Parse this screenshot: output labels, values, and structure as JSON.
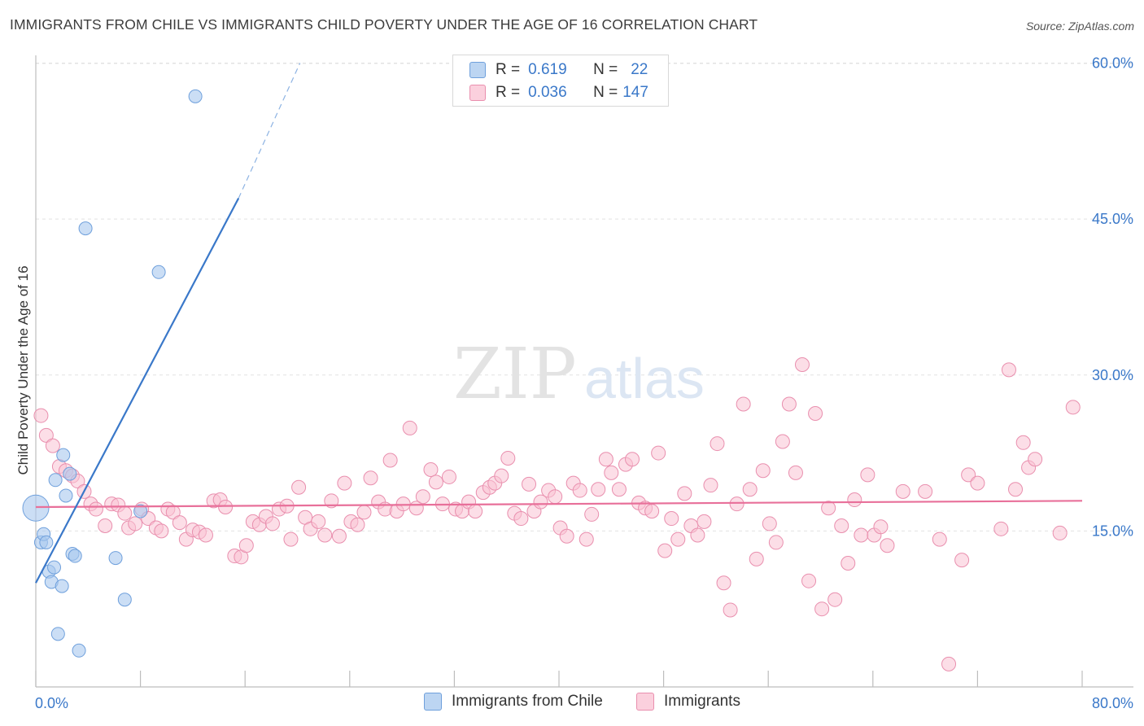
{
  "title": "IMMIGRANTS FROM CHILE VS IMMIGRANTS CHILD POVERTY UNDER THE AGE OF 16 CORRELATION CHART",
  "source": "Source: ZipAtlas.com",
  "watermark": {
    "zip": "ZIP",
    "atlas": "atlas"
  },
  "legend_stats": [
    {
      "r_label": "R =",
      "r_value": "0.619",
      "n_label": "N =",
      "n_value": "22",
      "color": "#a9c8ef",
      "border": "#6fa0dc"
    },
    {
      "r_label": "R =",
      "r_value": "0.036",
      "n_label": "N =",
      "n_value": "147",
      "color": "#f9c3d3",
      "border": "#e98fae"
    }
  ],
  "chart_data": {
    "type": "scatter",
    "title": "IMMIGRANTS FROM CHILE VS IMMIGRANTS CHILD POVERTY UNDER THE AGE OF 16 CORRELATION CHART",
    "xlabel": "",
    "ylabel": "Child Poverty Under the Age of 16",
    "xlim": [
      0,
      80
    ],
    "ylim": [
      0,
      63
    ],
    "x_tick_labels": [
      "0.0%",
      "80.0%"
    ],
    "y_ticks": [
      15,
      30,
      45,
      60
    ],
    "y_tick_labels": [
      "15.0%",
      "30.0%",
      "45.0%",
      "60.0%"
    ],
    "grid": true,
    "legend_position": "bottom-center",
    "series": [
      {
        "name": "Immigrants from Chile",
        "color": "#a9c8ef",
        "stroke": "#6fa0dc",
        "line_color": "#3a78c9",
        "trend": {
          "x0": 0,
          "y0": 10,
          "x1": 15.5,
          "y1": 47,
          "dash_x1": 20.2,
          "dash_y1": 60
        },
        "points": [
          [
            0,
            17.2,
            16
          ],
          [
            0.4,
            13.9,
            8
          ],
          [
            0.6,
            14.7,
            8
          ],
          [
            0.8,
            13.9,
            8
          ],
          [
            1.0,
            11.1,
            8
          ],
          [
            1.2,
            10.1,
            8
          ],
          [
            1.4,
            11.5,
            8
          ],
          [
            1.5,
            19.9,
            8
          ],
          [
            1.7,
            5.1,
            8
          ],
          [
            2.0,
            9.7,
            8
          ],
          [
            2.1,
            22.3,
            8
          ],
          [
            2.3,
            18.4,
            8
          ],
          [
            2.6,
            20.5,
            8
          ],
          [
            2.8,
            12.8,
            8
          ],
          [
            3.0,
            12.6,
            8
          ],
          [
            3.3,
            3.5,
            8
          ],
          [
            3.8,
            44.1,
            8
          ],
          [
            6.1,
            12.4,
            8
          ],
          [
            6.8,
            8.4,
            8
          ],
          [
            8.0,
            16.9,
            8
          ],
          [
            9.4,
            39.9,
            8
          ],
          [
            12.2,
            56.8,
            8
          ]
        ]
      },
      {
        "name": "Immigrants",
        "color": "#f9c3d3",
        "stroke": "#e98fae",
        "line_color": "#e8709a",
        "trend": {
          "x0": 0,
          "y0": 17.3,
          "x1": 80,
          "y1": 17.9
        },
        "points": [
          [
            0.4,
            26.1
          ],
          [
            0.8,
            24.2
          ],
          [
            1.3,
            23.2
          ],
          [
            1.8,
            21.2
          ],
          [
            2.3,
            20.8
          ],
          [
            2.8,
            20.3
          ],
          [
            3.2,
            19.8
          ],
          [
            3.7,
            18.8
          ],
          [
            4.2,
            17.6
          ],
          [
            4.6,
            17.1
          ],
          [
            5.3,
            15.5
          ],
          [
            5.8,
            17.6
          ],
          [
            6.3,
            17.5
          ],
          [
            6.8,
            16.7
          ],
          [
            7.1,
            15.3
          ],
          [
            7.6,
            15.7
          ],
          [
            8.1,
            17.1
          ],
          [
            8.6,
            16.2
          ],
          [
            9.2,
            15.3
          ],
          [
            9.6,
            15.0
          ],
          [
            10.1,
            17.1
          ],
          [
            10.5,
            16.8
          ],
          [
            11.0,
            15.8
          ],
          [
            11.5,
            14.2
          ],
          [
            12.0,
            15.1
          ],
          [
            12.5,
            14.9
          ],
          [
            13.0,
            14.6
          ],
          [
            13.6,
            17.9
          ],
          [
            14.1,
            18.0
          ],
          [
            14.5,
            17.3
          ],
          [
            15.2,
            12.6
          ],
          [
            15.7,
            12.5
          ],
          [
            16.1,
            13.6
          ],
          [
            16.6,
            15.9
          ],
          [
            17.1,
            15.6
          ],
          [
            17.6,
            16.4
          ],
          [
            18.1,
            15.7
          ],
          [
            18.6,
            17.1
          ],
          [
            19.2,
            17.4
          ],
          [
            19.5,
            14.2
          ],
          [
            20.1,
            19.2
          ],
          [
            20.6,
            16.3
          ],
          [
            21.0,
            15.2
          ],
          [
            21.6,
            15.9
          ],
          [
            22.1,
            14.6
          ],
          [
            22.6,
            17.9
          ],
          [
            23.2,
            14.5
          ],
          [
            23.6,
            19.6
          ],
          [
            24.1,
            15.9
          ],
          [
            24.6,
            15.6
          ],
          [
            25.1,
            16.8
          ],
          [
            25.6,
            20.1
          ],
          [
            26.2,
            17.8
          ],
          [
            26.7,
            17.1
          ],
          [
            27.1,
            21.8
          ],
          [
            27.6,
            16.9
          ],
          [
            28.1,
            17.6
          ],
          [
            28.6,
            24.9
          ],
          [
            29.1,
            17.2
          ],
          [
            29.6,
            18.3
          ],
          [
            30.2,
            20.9
          ],
          [
            30.6,
            19.7
          ],
          [
            31.1,
            17.6
          ],
          [
            31.6,
            20.2
          ],
          [
            32.1,
            17.1
          ],
          [
            32.6,
            16.9
          ],
          [
            33.1,
            17.8
          ],
          [
            33.6,
            16.9
          ],
          [
            34.2,
            18.7
          ],
          [
            34.7,
            19.2
          ],
          [
            35.1,
            19.6
          ],
          [
            35.6,
            20.3
          ],
          [
            36.1,
            22.0
          ],
          [
            36.6,
            16.7
          ],
          [
            37.1,
            16.2
          ],
          [
            37.7,
            19.5
          ],
          [
            38.1,
            16.9
          ],
          [
            38.6,
            17.8
          ],
          [
            39.2,
            18.9
          ],
          [
            39.7,
            18.3
          ],
          [
            40.1,
            15.3
          ],
          [
            40.6,
            14.5
          ],
          [
            41.1,
            19.6
          ],
          [
            41.6,
            18.9
          ],
          [
            42.1,
            14.2
          ],
          [
            42.5,
            16.6
          ],
          [
            43.0,
            19.0
          ],
          [
            43.6,
            21.9
          ],
          [
            44.0,
            20.6
          ],
          [
            44.6,
            19.0
          ],
          [
            45.1,
            21.4
          ],
          [
            45.6,
            21.9
          ],
          [
            46.1,
            17.7
          ],
          [
            46.6,
            17.2
          ],
          [
            47.1,
            16.9
          ],
          [
            47.6,
            22.5
          ],
          [
            48.1,
            13.1
          ],
          [
            48.6,
            16.2
          ],
          [
            49.1,
            14.2
          ],
          [
            49.6,
            18.6
          ],
          [
            50.1,
            15.5
          ],
          [
            50.6,
            14.6
          ],
          [
            51.1,
            15.9
          ],
          [
            51.6,
            19.4
          ],
          [
            52.1,
            23.4
          ],
          [
            52.6,
            10.0
          ],
          [
            53.1,
            7.4
          ],
          [
            53.6,
            17.6
          ],
          [
            54.1,
            27.2
          ],
          [
            54.6,
            19.0
          ],
          [
            55.1,
            12.3
          ],
          [
            55.6,
            20.8
          ],
          [
            56.1,
            15.7
          ],
          [
            56.6,
            13.9
          ],
          [
            57.1,
            23.6
          ],
          [
            57.6,
            27.2
          ],
          [
            58.1,
            20.6
          ],
          [
            58.6,
            31.0
          ],
          [
            59.1,
            10.2
          ],
          [
            59.6,
            26.3
          ],
          [
            60.1,
            7.5
          ],
          [
            60.6,
            17.2
          ],
          [
            61.1,
            8.4
          ],
          [
            61.6,
            15.5
          ],
          [
            62.1,
            11.9
          ],
          [
            62.6,
            18.0
          ],
          [
            63.1,
            14.6
          ],
          [
            63.6,
            20.4
          ],
          [
            64.1,
            14.6
          ],
          [
            64.6,
            15.4
          ],
          [
            65.1,
            13.6
          ],
          [
            66.3,
            18.8
          ],
          [
            68.0,
            18.8
          ],
          [
            69.1,
            14.2
          ],
          [
            69.8,
            2.2
          ],
          [
            70.8,
            12.2
          ],
          [
            71.3,
            20.4
          ],
          [
            72.0,
            19.6
          ],
          [
            73.8,
            15.2
          ],
          [
            74.4,
            30.5
          ],
          [
            74.9,
            19.0
          ],
          [
            75.5,
            23.5
          ],
          [
            75.9,
            21.1
          ],
          [
            76.4,
            21.9
          ],
          [
            78.3,
            14.8
          ],
          [
            79.3,
            26.9
          ]
        ]
      }
    ]
  }
}
